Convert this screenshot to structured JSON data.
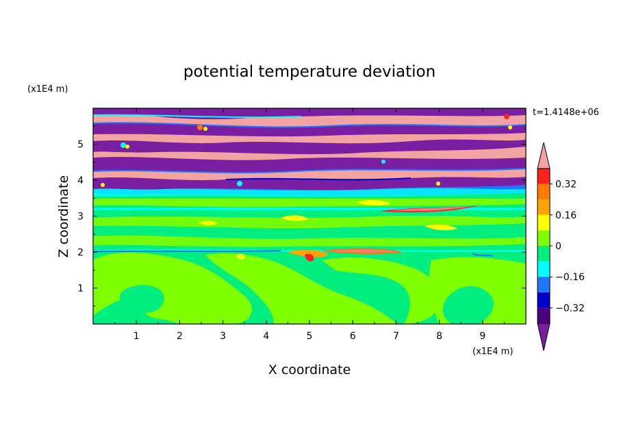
{
  "chart_data": {
    "type": "heatmap",
    "title": "potential temperature deviation",
    "xlabel": "X coordinate",
    "ylabel": "Z coordinate",
    "x_unit": "(x1E4 m)",
    "z_unit": "(x1E4 m)",
    "time_label": "t=1.4148e+06",
    "xlim": [
      0,
      10
    ],
    "zlim": [
      0,
      6
    ],
    "x_ticks": [
      "1",
      "2",
      "3",
      "4",
      "5",
      "6",
      "7",
      "8",
      "9"
    ],
    "z_ticks": [
      "1",
      "2",
      "3",
      "4",
      "5"
    ],
    "colorbar": {
      "labels": [
        "0.32",
        "0.16",
        "0",
        "-0.16",
        "-0.32"
      ],
      "label_values": [
        0.32,
        0.16,
        0,
        -0.16,
        -0.32
      ],
      "levels": [
        0.4,
        0.32,
        0.24,
        0.16,
        0.08,
        0,
        -0.08,
        -0.16,
        -0.24,
        -0.32,
        -0.4
      ],
      "colors": [
        "#f08080",
        "#ff2020",
        "#ff7a00",
        "#ffa500",
        "#ffff00",
        "#80ff00",
        "#00ee80",
        "#00ffff",
        "#1e78ff",
        "#0000c8",
        "#4b0082",
        "#7b1fa2"
      ],
      "over_color": "#f4a3a3",
      "under_color": "#7b1fa2"
    },
    "layers": [
      {
        "z_range": [
          0,
          2.0
        ],
        "pattern": "green/light-green swirl eddies",
        "value_approx": 0.02
      },
      {
        "z_range": [
          2.0,
          3.6
        ],
        "pattern": "green bands with scattered yellow/orange streaks",
        "value_approx": 0.0
      },
      {
        "z_range": [
          3.6,
          6.0
        ],
        "pattern": "alternating pink and purple horizontal bands",
        "value_approx": [
          -0.4,
          0.4
        ]
      }
    ]
  }
}
